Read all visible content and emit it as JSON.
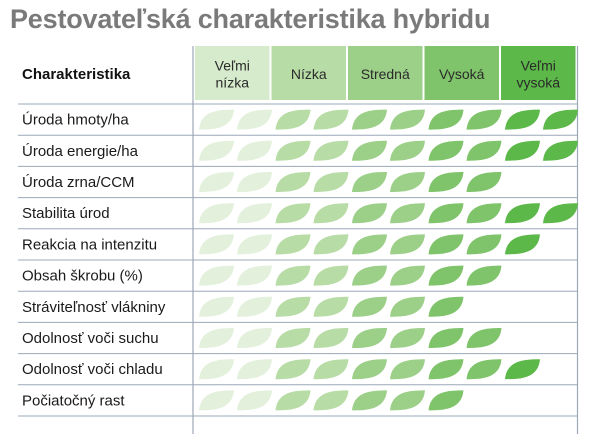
{
  "title": "Pestovateľská charakteristika hybridu",
  "chart_data": {
    "type": "table",
    "title": "Pestovateľská charakteristika hybridu",
    "row_header": "Charakteristika",
    "levels": [
      {
        "label": [
          "Veľmi",
          "nízka"
        ],
        "color": "#d6ebcc"
      },
      {
        "label": [
          "Nízka"
        ],
        "color": "#b8dca6"
      },
      {
        "label": [
          "Stredná"
        ],
        "color": "#9ccf88"
      },
      {
        "label": [
          "Vysoká"
        ],
        "color": "#7fc46b"
      },
      {
        "label": [
          "Veľmi",
          "vysoká"
        ],
        "color": "#5cb848"
      }
    ],
    "leaves_per_level": 2,
    "rows": [
      {
        "name": "Úroda hmoty/ha",
        "value": 10
      },
      {
        "name": "Úroda energie/ha",
        "value": 10
      },
      {
        "name": "Úroda zrna/CCM",
        "value": 8
      },
      {
        "name": "Stabilita úrod",
        "value": 10
      },
      {
        "name": "Reakcia na intenzitu",
        "value": 9
      },
      {
        "name": "Obsah škrobu (%)",
        "value": 8
      },
      {
        "name": "Stráviteľnosť vlákniny",
        "value": 7
      },
      {
        "name": "Odolnosť voči suchu",
        "value": 8
      },
      {
        "name": "Odolnosť voči chladu",
        "value": 9
      },
      {
        "name": "Počiatočný rast",
        "value": 7
      }
    ]
  }
}
